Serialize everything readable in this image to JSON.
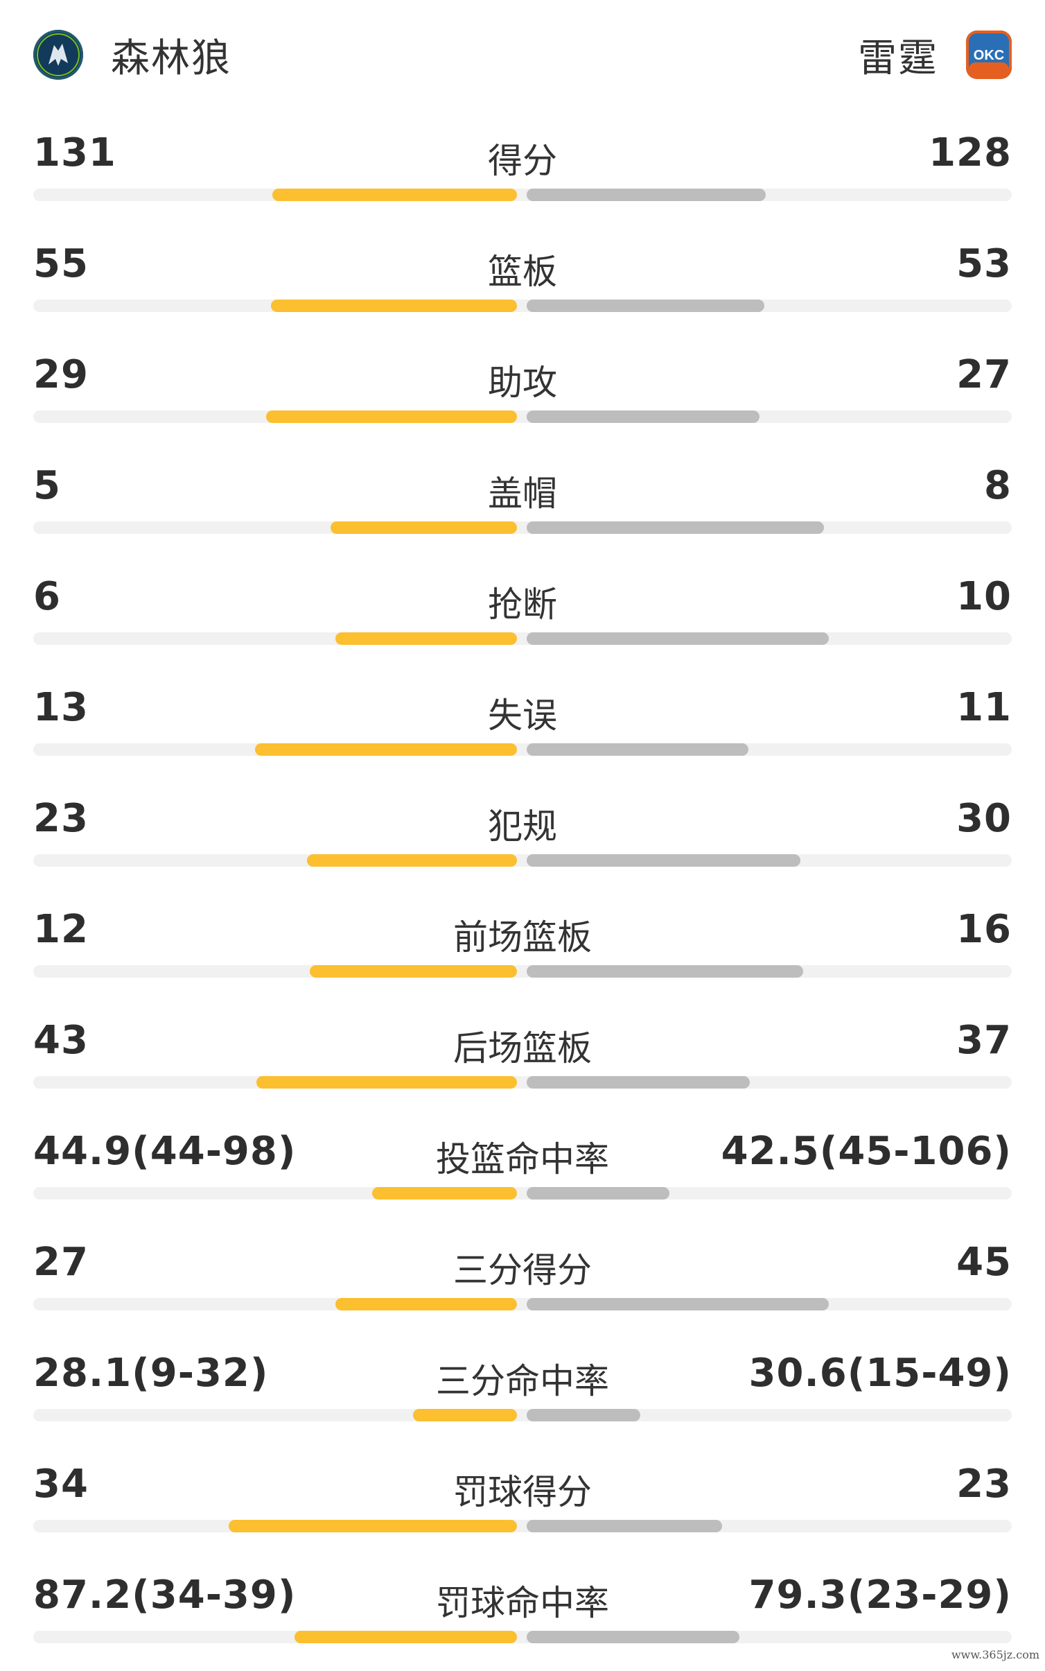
{
  "header": {
    "left_team": {
      "name": "森林狼",
      "logo_icon": "timberwolves-logo-icon"
    },
    "right_team": {
      "name": "雷霆",
      "logo_icon": "thunder-okc-logo-icon",
      "logo_text": "OKC"
    }
  },
  "colors": {
    "left_bar": "#fbbf2f",
    "right_bar": "#bdbdbd",
    "track": "#f1f1f1"
  },
  "stats": [
    {
      "label": "得分",
      "left": "131",
      "right": "128",
      "left_share": 0.506,
      "right_share": 0.494
    },
    {
      "label": "篮板",
      "left": "55",
      "right": "53",
      "left_share": 0.509,
      "right_share": 0.491
    },
    {
      "label": "助攻",
      "left": "29",
      "right": "27",
      "left_share": 0.518,
      "right_share": 0.482
    },
    {
      "label": "盖帽",
      "left": "5",
      "right": "8",
      "left_share": 0.385,
      "right_share": 0.615
    },
    {
      "label": "抢断",
      "left": "6",
      "right": "10",
      "left_share": 0.375,
      "right_share": 0.625
    },
    {
      "label": "失误",
      "left": "13",
      "right": "11",
      "left_share": 0.542,
      "right_share": 0.458
    },
    {
      "label": "犯规",
      "left": "23",
      "right": "30",
      "left_share": 0.434,
      "right_share": 0.566
    },
    {
      "label": "前场篮板",
      "left": "12",
      "right": "16",
      "left_share": 0.429,
      "right_share": 0.571
    },
    {
      "label": "后场篮板",
      "left": "43",
      "right": "37",
      "left_share": 0.538,
      "right_share": 0.462
    },
    {
      "label": "投篮命中率",
      "left": "44.9(44-98)",
      "right": "42.5(45-106)",
      "left_share": 0.3,
      "right_share": 0.295
    },
    {
      "label": "三分得分",
      "left": "27",
      "right": "45",
      "left_share": 0.375,
      "right_share": 0.625
    },
    {
      "label": "三分命中率",
      "left": "28.1(9-32)",
      "right": "30.6(15-49)",
      "left_share": 0.215,
      "right_share": 0.235
    },
    {
      "label": "罚球得分",
      "left": "34",
      "right": "23",
      "left_share": 0.596,
      "right_share": 0.404
    },
    {
      "label": "罚球命中率",
      "left": "87.2(34-39)",
      "right": "79.3(23-29)",
      "left_share": 0.46,
      "right_share": 0.44
    }
  ],
  "watermark": "www.365jz.com"
}
